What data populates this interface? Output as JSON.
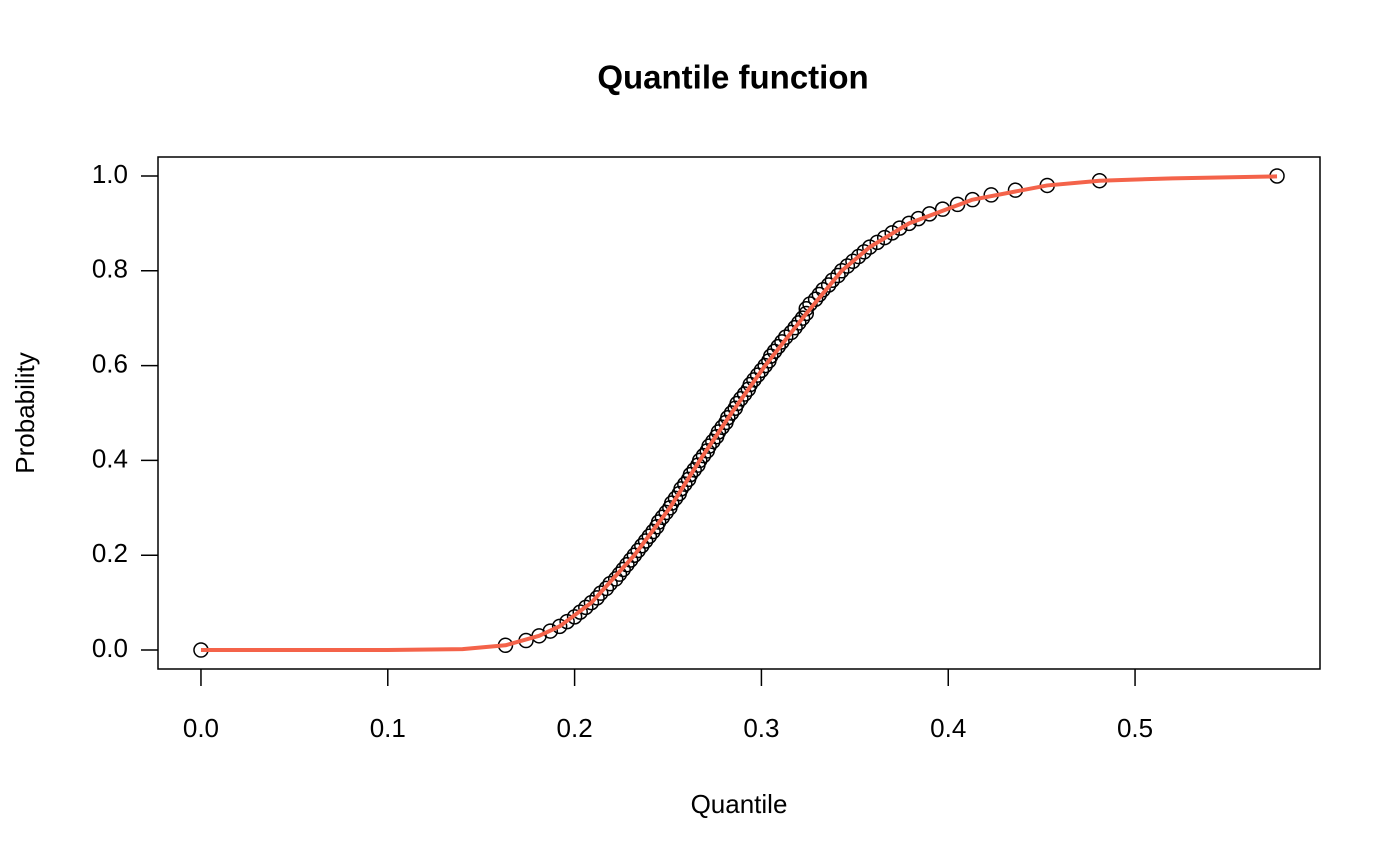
{
  "chart_data": {
    "type": "scatter",
    "title": "Quantile function",
    "xlabel": "Quantile",
    "ylabel": "Probability",
    "xlim": [
      -0.023,
      0.599
    ],
    "ylim": [
      -0.04,
      1.04
    ],
    "xticks": [
      {
        "value": 0,
        "label": "0.0"
      },
      0.1,
      0.2,
      0.3,
      0.4,
      0.5
    ],
    "yticks": [
      {
        "value": 0,
        "label": "0.0"
      },
      0.2,
      0.4,
      0.6,
      0.8,
      {
        "value": 1,
        "label": "1.0"
      }
    ],
    "series": [
      {
        "type": "scatter",
        "color": "#000000",
        "x": [
          0,
          0.163,
          0.174,
          0.181,
          0.187,
          0.192,
          0.196,
          0.2,
          0.203,
          0.206,
          0.209,
          0.212,
          0.214,
          0.217,
          0.219,
          0.222,
          0.224,
          0.226,
          0.228,
          0.23,
          0.232,
          0.234,
          0.236,
          0.238,
          0.24,
          0.242,
          0.244,
          0.245,
          0.247,
          0.249,
          0.251,
          0.252,
          0.254,
          0.256,
          0.257,
          0.259,
          0.261,
          0.262,
          0.264,
          0.266,
          0.267,
          0.269,
          0.271,
          0.272,
          0.274,
          0.276,
          0.277,
          0.279,
          0.281,
          0.282,
          0.284,
          0.286,
          0.287,
          0.289,
          0.291,
          0.293,
          0.294,
          0.296,
          0.298,
          0.3,
          0.302,
          0.304,
          0.305,
          0.307,
          0.309,
          0.311,
          0.313,
          0.316,
          0.318,
          0.32,
          0.322,
          0.324,
          0.324,
          0.326,
          0.329,
          0.331,
          0.333,
          0.336,
          0.338,
          0.341,
          0.343,
          0.346,
          0.349,
          0.352,
          0.355,
          0.358,
          0.362,
          0.366,
          0.37,
          0.374,
          0.379,
          0.384,
          0.39,
          0.397,
          0.405,
          0.413,
          0.423,
          0.436,
          0.453,
          0.481,
          0.576
        ],
        "values": [
          0,
          0.01,
          0.02,
          0.03,
          0.04,
          0.05,
          0.06,
          0.07,
          0.08,
          0.09,
          0.1,
          0.11,
          0.12,
          0.13,
          0.14,
          0.15,
          0.16,
          0.17,
          0.18,
          0.19,
          0.2,
          0.21,
          0.22,
          0.23,
          0.24,
          0.25,
          0.26,
          0.27,
          0.28,
          0.29,
          0.3,
          0.31,
          0.32,
          0.33,
          0.34,
          0.35,
          0.36,
          0.37,
          0.38,
          0.39,
          0.4,
          0.41,
          0.42,
          0.43,
          0.44,
          0.45,
          0.46,
          0.47,
          0.48,
          0.49,
          0.5,
          0.51,
          0.52,
          0.53,
          0.54,
          0.55,
          0.56,
          0.57,
          0.58,
          0.59,
          0.6,
          0.61,
          0.62,
          0.63,
          0.64,
          0.65,
          0.66,
          0.67,
          0.68,
          0.69,
          0.7,
          0.71,
          0.72,
          0.73,
          0.74,
          0.75,
          0.76,
          0.77,
          0.78,
          0.79,
          0.8,
          0.81,
          0.82,
          0.83,
          0.84,
          0.85,
          0.86,
          0.87,
          0.88,
          0.89,
          0.9,
          0.91,
          0.92,
          0.93,
          0.94,
          0.95,
          0.96,
          0.97,
          0.98,
          0.99,
          1
        ]
      },
      {
        "type": "line",
        "color": "#f4634a",
        "x": [
          0,
          0.1,
          0.14,
          0.163,
          0.181,
          0.192,
          0.209,
          0.232,
          0.251,
          0.267,
          0.284,
          0.302,
          0.322,
          0.343,
          0.358,
          0.379,
          0.413,
          0.453,
          0.481,
          0.52,
          0.576
        ],
        "values": [
          0,
          0,
          0.002,
          0.01,
          0.03,
          0.05,
          0.1,
          0.2,
          0.3,
          0.4,
          0.5,
          0.6,
          0.7,
          0.8,
          0.85,
          0.9,
          0.95,
          0.98,
          0.99,
          0.995,
          0.999
        ]
      }
    ]
  }
}
